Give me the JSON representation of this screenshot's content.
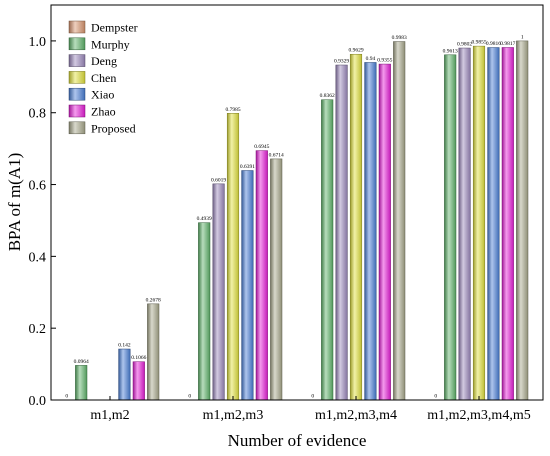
{
  "chart_data": {
    "type": "bar",
    "title": "",
    "xlabel": "Number of evidence",
    "ylabel": "BPA of m(A1)",
    "ylim": [
      0,
      1.1
    ],
    "yticks": [
      "0.0",
      "0.2",
      "0.4",
      "0.6",
      "0.8",
      "1.0"
    ],
    "legend_position": "top-left",
    "categories": [
      "m1,m2",
      "m1,m2,m3",
      "m1,m2,m3,m4",
      "m1,m2,m3,m4,m5"
    ],
    "series": [
      {
        "name": "Dempster",
        "color": "#d9956f",
        "values": [
          0,
          0,
          0,
          0
        ],
        "labels": [
          "0",
          "0",
          "0",
          "0"
        ]
      },
      {
        "name": "Murphy",
        "color": "#5eb36a",
        "values": [
          0.0964,
          0.4939,
          0.8362,
          0.9613
        ],
        "labels": [
          "0.0964",
          "0.4939",
          "0.8362",
          "0.9613"
        ]
      },
      {
        "name": "Deng",
        "color": "#9b88bc",
        "values": [
          0,
          0.6019,
          0.9329,
          0.9802
        ],
        "labels": [
          "",
          "0.6019",
          "0.9329",
          "0.9802"
        ]
      },
      {
        "name": "Chen",
        "color": "#e0e03c",
        "values": [
          0,
          0.7985,
          0.9629,
          0.9855
        ],
        "labels": [
          "",
          "0.7985",
          "0.9629",
          "0.9855"
        ]
      },
      {
        "name": "Xiao",
        "color": "#4a7fd6",
        "values": [
          0.142,
          0.6391,
          0.94,
          0.9816
        ],
        "labels": [
          "0.142",
          "0.6391",
          "0.94",
          "0.9816"
        ]
      },
      {
        "name": "Zhao",
        "color": "#e61fd8",
        "values": [
          0.1066,
          0.6945,
          0.9355,
          0.9817
        ],
        "labels": [
          "0.1066",
          "0.6945",
          "0.9355",
          "0.9817"
        ]
      },
      {
        "name": "Proposed",
        "color": "#a8a88c",
        "values": [
          0.2678,
          0.6714,
          0.9983,
          1.0
        ],
        "labels": [
          "0.2678",
          "0.6714",
          "0.9983",
          "1"
        ]
      }
    ]
  }
}
